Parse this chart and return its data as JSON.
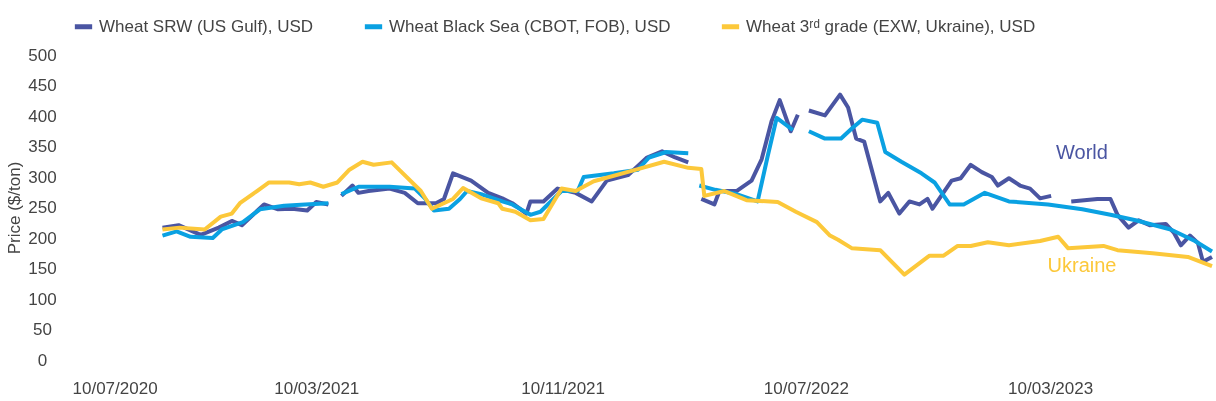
{
  "chart_data": {
    "type": "line",
    "ylabel": "Price ($/ton)",
    "xlim": [
      "2020-07-10",
      "2023-08-18"
    ],
    "xticks": [
      {
        "value": "2020-07-10",
        "label": "10/07/2020"
      },
      {
        "value": "2021-03-10",
        "label": "10/03/2021"
      },
      {
        "value": "2021-11-10",
        "label": "10/11/2021"
      },
      {
        "value": "2022-07-10",
        "label": "10/07/2022"
      },
      {
        "value": "2023-03-10",
        "label": "10/03/2023"
      }
    ],
    "ylim": [
      0,
      500
    ],
    "yticks": [
      0,
      50,
      100,
      150,
      200,
      250,
      300,
      350,
      400,
      450,
      500
    ],
    "grid": false,
    "legend": "top",
    "line_style": "solid",
    "marker": "none",
    "series": [
      {
        "name": "Wheat SRW (US Gulf), USD",
        "color": "#4a55a2",
        "x": [
          "2020-10-08",
          "2020-10-24",
          "2020-11-15",
          "2020-12-03",
          "2020-12-16",
          "2020-12-26",
          "2021-01-17",
          "2021-01-31",
          "2021-02-14",
          "2021-03-01",
          "2021-03-10",
          "2021-03-22",
          "2021-03-28",
          "2021-04-04",
          "2021-04-15",
          "2021-04-21",
          "2021-05-01",
          "2021-05-22",
          "2021-06-06",
          "2021-06-19",
          "2021-07-07",
          "2021-07-15",
          "2021-07-24",
          "2021-08-11",
          "2021-08-28",
          "2021-09-11",
          "2021-09-21",
          "2021-10-05",
          "2021-10-09",
          "2021-10-22",
          "2021-11-05",
          "2021-11-23",
          "2021-12-09",
          "2021-12-24",
          "2022-01-14",
          "2022-02-02",
          "2022-02-17",
          "2022-03-02",
          "2022-03-15",
          "2022-03-21",
          "2022-03-28",
          "2022-04-10",
          "2022-04-15",
          "2022-05-02",
          "2022-05-17",
          "2022-05-27",
          "2022-06-06",
          "2022-06-14",
          "2022-06-25",
          "2022-07-02",
          "2022-07-07",
          "2022-07-13",
          "2022-07-29",
          "2022-08-13",
          "2022-08-21",
          "2022-08-29",
          "2022-09-06",
          "2022-09-22",
          "2022-09-30",
          "2022-10-11",
          "2022-10-21",
          "2022-10-31",
          "2022-11-08",
          "2022-11-13",
          "2022-12-02",
          "2022-12-11",
          "2022-12-21",
          "2023-01-01",
          "2023-01-11",
          "2023-01-17",
          "2023-01-28",
          "2023-02-08",
          "2023-02-18",
          "2023-02-28",
          "2023-03-11",
          "2023-03-20",
          "2023-03-31",
          "2023-04-26",
          "2023-05-09",
          "2023-05-16",
          "2023-05-27",
          "2023-06-06",
          "2023-06-17",
          "2023-07-03",
          "2023-07-11",
          "2023-07-18",
          "2023-07-27",
          "2023-08-04",
          "2023-08-09",
          "2023-08-18"
        ],
        "values": [
          217,
          221,
          205,
          217,
          228,
          221,
          255,
          247,
          248,
          245,
          259,
          255,
          null,
          269,
          286,
          274,
          277,
          281,
          274,
          257,
          257,
          264,
          306,
          294,
          274,
          265,
          257,
          240,
          260,
          260,
          281,
          274,
          260,
          294,
          303,
          332,
          342,
          332,
          324,
          null,
          264,
          255,
          277,
          277,
          294,
          329,
          392,
          426,
          375,
          402,
          null,
          409,
          401,
          435,
          414,
          363,
          358,
          260,
          274,
          240,
          260,
          255,
          264,
          248,
          294,
          298,
          320,
          308,
          300,
          286,
          298,
          286,
          281,
          265,
          269,
          null,
          260,
          264,
          264,
          238,
          217,
          229,
          221,
          223,
          209,
          188,
          204,
          192,
          161,
          169
        ]
      },
      {
        "name": "Wheat Black Sea (CBOT, FOB), USD",
        "color": "#0aa1e2",
        "x": [
          "2020-10-08",
          "2020-10-22",
          "2020-11-05",
          "2020-11-27",
          "2020-12-06",
          "2020-12-27",
          "2021-01-13",
          "2021-02-06",
          "2021-02-27",
          "2021-03-22",
          "2021-03-28",
          "2021-04-04",
          "2021-04-21",
          "2021-05-22",
          "2021-06-16",
          "2021-06-26",
          "2021-07-05",
          "2021-07-20",
          "2021-07-31",
          "2021-08-07",
          "2021-08-21",
          "2021-09-11",
          "2021-09-21",
          "2021-10-09",
          "2021-10-19",
          "2021-11-09",
          "2021-11-25",
          "2021-12-01",
          "2021-12-31",
          "2022-01-24",
          "2022-02-04",
          "2022-02-21",
          "2022-03-15",
          "2022-03-21",
          "2022-03-26",
          "2022-04-11",
          "2022-05-02",
          "2022-05-23",
          "2022-06-02",
          "2022-06-11",
          "2022-06-27",
          "2022-07-05",
          "2022-07-13",
          "2022-07-29",
          "2022-08-14",
          "2022-08-25",
          "2022-09-04",
          "2022-09-19",
          "2022-09-27",
          "2022-10-13",
          "2022-11-02",
          "2022-11-15",
          "2022-11-30",
          "2022-12-14",
          "2023-01-04",
          "2023-01-28",
          "2023-03-08",
          "2023-04-11",
          "2023-05-09",
          "2023-06-03",
          "2023-07-08",
          "2023-08-01",
          "2023-08-18"
        ],
        "values": [
          204,
          211,
          202,
          200,
          214,
          226,
          247,
          253,
          255,
          257,
          null,
          272,
          284,
          284,
          281,
          265,
          245,
          248,
          264,
          277,
          272,
          260,
          255,
          238,
          243,
          277,
          277,
          300,
          306,
          312,
          332,
          341,
          339,
          null,
          286,
          279,
          272,
          260,
          334,
          397,
          377,
          null,
          375,
          363,
          363,
          380,
          394,
          389,
          341,
          325,
          306,
          291,
          255,
          255,
          274,
          260,
          255,
          247,
          238,
          229,
          214,
          195,
          178
        ]
      },
      {
        "name": "Wheat 3ʳᵈ grade (EXW, Ukraine), USD",
        "color": "#fcc83a",
        "x": [
          "2020-10-08",
          "2020-10-25",
          "2020-11-19",
          "2020-12-05",
          "2020-12-16",
          "2020-12-24",
          "2021-01-10",
          "2021-01-22",
          "2021-02-11",
          "2021-02-21",
          "2021-03-04",
          "2021-03-17",
          "2021-03-31",
          "2021-04-12",
          "2021-04-25",
          "2021-05-06",
          "2021-05-24",
          "2021-06-22",
          "2021-07-03",
          "2021-07-24",
          "2021-08-03",
          "2021-08-21",
          "2021-09-07",
          "2021-09-11",
          "2021-09-24",
          "2021-10-09",
          "2021-10-22",
          "2021-11-09",
          "2021-11-23",
          "2021-12-11",
          "2022-01-24",
          "2022-02-19",
          "2022-03-15",
          "2022-03-28",
          "2022-03-31",
          "2022-04-20",
          "2022-05-12",
          "2022-06-12",
          "2022-06-30",
          "2022-07-21",
          "2022-08-03",
          "2022-08-11",
          "2022-08-25",
          "2022-09-22",
          "2022-10-16",
          "2022-11-10",
          "2022-11-24",
          "2022-12-08",
          "2022-12-21",
          "2023-01-07",
          "2023-01-28",
          "2023-02-28",
          "2023-03-18",
          "2023-03-28",
          "2023-05-02",
          "2023-05-16",
          "2023-06-20",
          "2023-07-25",
          "2023-08-18"
        ],
        "values": [
          214,
          217,
          214,
          235,
          240,
          257,
          277,
          291,
          291,
          288,
          291,
          284,
          291,
          312,
          325,
          320,
          324,
          277,
          248,
          264,
          282,
          265,
          257,
          248,
          243,
          229,
          231,
          281,
          277,
          293,
          313,
          325,
          315,
          313,
          269,
          277,
          262,
          259,
          243,
          226,
          204,
          197,
          183,
          180,
          140,
          171,
          171,
          187,
          187,
          193,
          188,
          195,
          202,
          183,
          187,
          180,
          175,
          169,
          154
        ]
      }
    ],
    "annotations": [
      "World",
      "Ukraine"
    ]
  }
}
